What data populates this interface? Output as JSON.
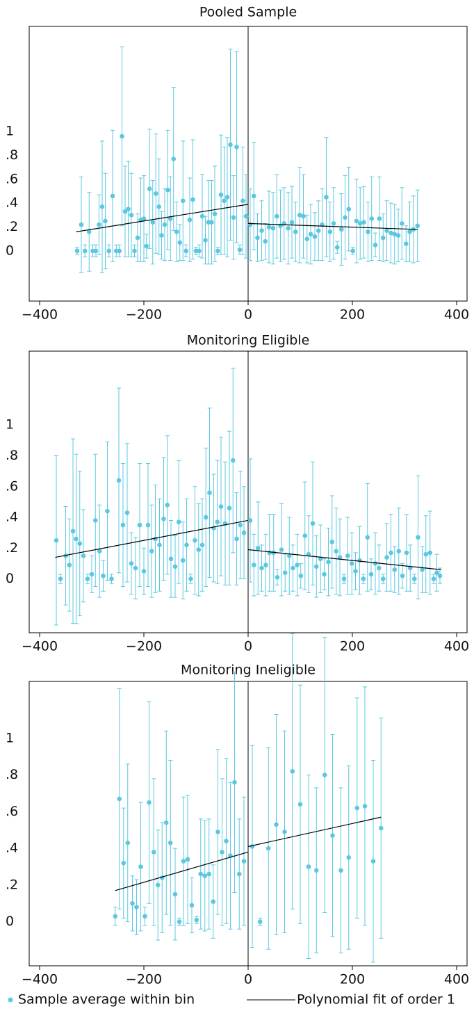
{
  "legend": [
    {
      "label": "Sample average within bin",
      "color": "#5bc8e0"
    },
    {
      "label": "Polynomial fit of order 1",
      "color": "#000000"
    }
  ],
  "chart_data": [
    {
      "type": "scatter",
      "title": "Pooled Sample",
      "xlim": [
        -420,
        420
      ],
      "ylim": [
        -0.42,
        1.88
      ],
      "xticks": [
        {
          "value": -400,
          "label": "−400"
        },
        {
          "value": -200,
          "label": "−200"
        },
        0,
        200,
        400
      ],
      "yticks": [
        0,
        {
          "value": 0.2,
          "label": ".2"
        },
        {
          "value": 0.4,
          "label": ".4"
        },
        {
          "value": 0.6,
          "label": ".6"
        },
        {
          "value": 0.8,
          "label": ".8"
        },
        1
      ],
      "points": {
        "x": [
          -328,
          -320,
          -313,
          -305,
          -298,
          -292,
          -286,
          -280,
          -274,
          -267,
          -260,
          -253,
          -247,
          -242,
          -236,
          -230,
          -224,
          -218,
          -212,
          -206,
          -200,
          -195,
          -189,
          -183,
          -177,
          -171,
          -166,
          -160,
          -154,
          -149,
          -143,
          -137,
          -131,
          -125,
          -119,
          -112,
          -106,
          -100,
          -94,
          -88,
          -82,
          -76,
          -70,
          -64,
          -58,
          -52,
          -46,
          -40,
          -34,
          -28,
          -22,
          -16,
          -10,
          -4,
          4,
          11,
          18,
          26,
          33,
          40,
          48,
          55,
          62,
          69,
          77,
          84,
          91,
          99,
          106,
          113,
          120,
          128,
          135,
          142,
          150,
          157,
          164,
          171,
          179,
          186,
          193,
          201,
          208,
          215,
          222,
          230,
          237,
          244,
          252,
          259,
          266,
          274,
          281,
          288,
          295,
          303,
          310,
          317,
          325
        ],
        "values": [
          0,
          0.22,
          0,
          0.16,
          0,
          0,
          0.22,
          0.37,
          0.25,
          0,
          0.46,
          0,
          0,
          0.96,
          0.33,
          0.35,
          0.3,
          0,
          0.11,
          0.26,
          0.27,
          0.04,
          0.52,
          0.24,
          0.48,
          0.37,
          0.13,
          0.22,
          0.51,
          0.27,
          0.77,
          0.16,
          0.07,
          0.42,
          0,
          0.26,
          0.43,
          0,
          0,
          0.29,
          0.09,
          0.24,
          0.24,
          0.31,
          0,
          0.47,
          0.42,
          0.45,
          0.89,
          0.28,
          0.87,
          0.01,
          0.42,
          0.29,
          0.22,
          0.46,
          0.11,
          0.17,
          0.08,
          0.2,
          0.19,
          0.29,
          0.21,
          0.23,
          0.19,
          0.24,
          0.16,
          0.3,
          0.29,
          0.1,
          0.14,
          0.12,
          0.17,
          0.22,
          0.45,
          0.16,
          0.23,
          0.03,
          0.18,
          0.28,
          0.35,
          0,
          0.25,
          0.23,
          0.24,
          0.16,
          0.27,
          0.05,
          0.27,
          0.11,
          0.17,
          0.15,
          0.14,
          0.13,
          0.23,
          0.06,
          0.16,
          0.18,
          0.21
        ],
        "errors": [
          0.03,
          0.4,
          0.05,
          0.33,
          0.05,
          0.05,
          0.25,
          0.55,
          0.4,
          0.05,
          0.55,
          0.05,
          0.05,
          0.75,
          0.38,
          0.4,
          0.35,
          0.05,
          0.2,
          0.35,
          0.36,
          0.1,
          0.5,
          0.35,
          0.5,
          0.4,
          0.2,
          0.3,
          0.5,
          0.35,
          0.6,
          0.25,
          0.15,
          0.5,
          0.05,
          0.35,
          0.5,
          0.03,
          0.05,
          0.35,
          0.2,
          0.35,
          0.35,
          0.4,
          0.03,
          0.5,
          0.45,
          0.5,
          0.8,
          0.35,
          0.8,
          0.04,
          0.45,
          0.35,
          0.3,
          0.45,
          0.2,
          0.25,
          0.15,
          0.3,
          0.3,
          0.35,
          0.3,
          0.3,
          0.3,
          0.3,
          0.25,
          0.4,
          0.35,
          0.2,
          0.25,
          0.2,
          0.25,
          0.3,
          0.5,
          0.25,
          0.3,
          0.05,
          0.3,
          0.35,
          0.35,
          0.03,
          0.35,
          0.3,
          0.3,
          0.25,
          0.35,
          0.1,
          0.35,
          0.2,
          0.25,
          0.25,
          0.25,
          0.22,
          0.3,
          0.15,
          0.25,
          0.28,
          0.3
        ]
      },
      "fit": [
        {
          "x": [
            -330,
            0
          ],
          "values": [
            0.16,
            0.39
          ]
        },
        {
          "x": [
            0,
            325
          ],
          "values": [
            0.23,
            0.18
          ]
        }
      ]
    },
    {
      "type": "scatter",
      "title": "Monitoring Eligible",
      "xlim": [
        -420,
        420
      ],
      "ylim": [
        -0.35,
        1.48
      ],
      "xticks": [
        {
          "value": -400,
          "label": "−400"
        },
        {
          "value": -200,
          "label": "−200"
        },
        0,
        200,
        400
      ],
      "yticks": [
        0,
        {
          "value": 0.2,
          "label": ".2"
        },
        {
          "value": 0.4,
          "label": ".4"
        },
        {
          "value": 0.6,
          "label": ".6"
        },
        {
          "value": 0.8,
          "label": ".8"
        },
        1
      ],
      "points": {
        "x": [
          -368,
          -360,
          -350,
          -343,
          -336,
          -330,
          -323,
          -316,
          -308,
          -300,
          -293,
          -285,
          -278,
          -270,
          -262,
          -248,
          -240,
          -232,
          -224,
          -216,
          -208,
          -200,
          -192,
          -185,
          -178,
          -170,
          -162,
          -155,
          -148,
          -140,
          -133,
          -125,
          -118,
          -110,
          -102,
          -95,
          -88,
          -81,
          -74,
          -66,
          -59,
          -52,
          -44,
          -36,
          -29,
          -22,
          -15,
          -8,
          4,
          11,
          19,
          26,
          34,
          41,
          49,
          56,
          64,
          71,
          79,
          86,
          94,
          101,
          109,
          116,
          124,
          131,
          139,
          146,
          154,
          161,
          169,
          176,
          184,
          191,
          199,
          206,
          214,
          221,
          229,
          236,
          244,
          251,
          259,
          266,
          274,
          281,
          289,
          296,
          304,
          311,
          319,
          326,
          334,
          341,
          349,
          356,
          362,
          368
        ],
        "values": [
          0.25,
          0,
          0.15,
          0.09,
          0.31,
          0.26,
          0.23,
          0.15,
          0,
          0.03,
          0.38,
          0.18,
          0.02,
          0.44,
          0,
          0.64,
          0.35,
          0.43,
          0.1,
          0.07,
          0.35,
          0.05,
          0.35,
          0.18,
          0.26,
          0.22,
          0.39,
          0.48,
          0.13,
          0.08,
          0.37,
          0.12,
          0.22,
          0,
          0.25,
          0.19,
          0.22,
          0.4,
          0.56,
          0.33,
          0.37,
          0.47,
          0.36,
          0.46,
          0.77,
          0.26,
          0.35,
          0.3,
          0.38,
          0.09,
          0.2,
          0.07,
          0.09,
          0.17,
          0.17,
          0.01,
          0.19,
          0.04,
          0.15,
          0.07,
          0.09,
          0.02,
          0.28,
          0.16,
          0.36,
          0.08,
          0.13,
          0.03,
          0.11,
          0.24,
          0.18,
          0.14,
          0,
          0.15,
          0.1,
          0.05,
          0.12,
          0,
          0.27,
          0.03,
          0.1,
          0.07,
          0,
          0.14,
          0.17,
          0.06,
          0.18,
          0.02,
          0.17,
          0.07,
          0,
          0.27,
          0.06,
          0.16,
          0.17,
          0,
          0.04,
          0.02
        ],
        "errors": [
          0.55,
          0.03,
          0.32,
          0.3,
          0.6,
          0.55,
          0.47,
          0.3,
          0.03,
          0.12,
          0.43,
          0.3,
          0.1,
          0.45,
          0.03,
          0.6,
          0.4,
          0.45,
          0.2,
          0.2,
          0.4,
          0.15,
          0.4,
          0.3,
          0.35,
          0.3,
          0.4,
          0.45,
          0.25,
          0.2,
          0.4,
          0.25,
          0.3,
          0.03,
          0.35,
          0.3,
          0.3,
          0.45,
          0.55,
          0.35,
          0.4,
          0.45,
          0.4,
          0.5,
          0.6,
          0.3,
          0.35,
          0.3,
          0.4,
          0.2,
          0.3,
          0.15,
          0.2,
          0.25,
          0.25,
          0.05,
          0.3,
          0.12,
          0.25,
          0.15,
          0.2,
          0.08,
          0.35,
          0.25,
          0.4,
          0.2,
          0.22,
          0.1,
          0.22,
          0.3,
          0.28,
          0.25,
          0.03,
          0.25,
          0.2,
          0.12,
          0.22,
          0.03,
          0.35,
          0.1,
          0.2,
          0.15,
          0.03,
          0.22,
          0.25,
          0.15,
          0.28,
          0.08,
          0.25,
          0.15,
          0.03,
          0.4,
          0.15,
          0.25,
          0.27,
          0.03,
          0.12,
          0.05
        ]
      },
      "fit": [
        {
          "x": [
            -370,
            0
          ],
          "values": [
            0.14,
            0.38
          ]
        },
        {
          "x": [
            0,
            370
          ],
          "values": [
            0.19,
            0.06
          ]
        }
      ]
    },
    {
      "type": "scatter",
      "title": "Monitoring Ineligible",
      "xlim": [
        -420,
        420
      ],
      "ylim": [
        -0.24,
        1.31
      ],
      "xticks": [
        {
          "value": -400,
          "label": "−400"
        },
        {
          "value": -200,
          "label": "−200"
        },
        0,
        200,
        400
      ],
      "yticks": [
        0,
        {
          "value": 0.2,
          "label": ".2"
        },
        {
          "value": 0.4,
          "label": ".4"
        },
        {
          "value": 0.6,
          "label": ".6"
        },
        {
          "value": 0.8,
          "label": ".8"
        },
        1
      ],
      "points": {
        "x": [
          -255,
          -247,
          -239,
          -231,
          -222,
          -214,
          -206,
          -198,
          -190,
          -181,
          -173,
          -165,
          -157,
          -149,
          -140,
          -132,
          -124,
          -116,
          -108,
          -99,
          -91,
          -83,
          -75,
          -67,
          -58,
          -50,
          -42,
          -34,
          -26,
          -17,
          -8,
          8,
          23,
          39,
          54,
          70,
          85,
          100,
          116,
          131,
          147,
          162,
          178,
          193,
          209,
          224,
          240,
          255
        ],
        "values": [
          0.03,
          0.67,
          0.32,
          0.43,
          0.1,
          0.08,
          0.3,
          0.03,
          0.65,
          0.38,
          0.2,
          0.24,
          0.54,
          0.43,
          0.15,
          0,
          0.33,
          0.34,
          0.09,
          0.01,
          0.26,
          0.25,
          0.26,
          0.11,
          0.49,
          0.38,
          0.44,
          0.36,
          0.76,
          0.26,
          0.33,
          0.41,
          0,
          0.4,
          0.53,
          0.49,
          0.82,
          0.64,
          0.3,
          0.28,
          0.8,
          0.47,
          0.28,
          0.35,
          0.62,
          0.63,
          0.33,
          0.51
        ],
        "errors": [
          0.05,
          0.6,
          0.3,
          0.43,
          0.15,
          0.15,
          0.35,
          0.05,
          0.55,
          0.4,
          0.3,
          0.3,
          0.5,
          0.45,
          0.25,
          0.02,
          0.35,
          0.35,
          0.15,
          0.02,
          0.3,
          0.3,
          0.3,
          0.2,
          0.45,
          0.4,
          0.45,
          0.4,
          0.6,
          0.3,
          0.35,
          0.55,
          0.02,
          0.55,
          0.6,
          0.55,
          0.75,
          0.65,
          0.5,
          0.45,
          0.75,
          0.55,
          0.45,
          0.5,
          0.6,
          0.65,
          0.55,
          0.6
        ]
      },
      "fit": [
        {
          "x": [
            -255,
            0
          ],
          "values": [
            0.17,
            0.38
          ]
        },
        {
          "x": [
            0,
            255
          ],
          "values": [
            0.41,
            0.57
          ]
        }
      ]
    }
  ]
}
